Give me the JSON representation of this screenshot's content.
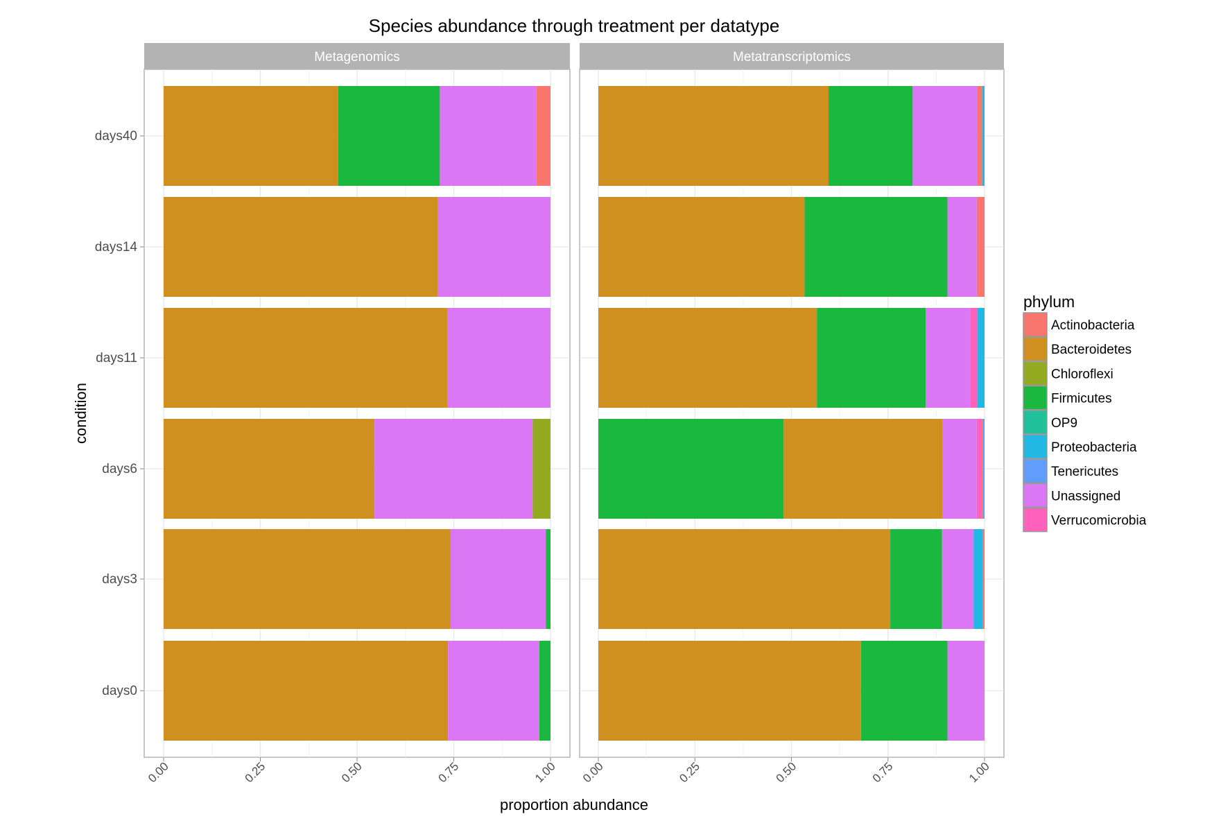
{
  "chart_data": {
    "type": "bar",
    "orientation": "horizontal-stacked",
    "title": "Species abundance through treatment per datatype",
    "xlabel": "proportion abundance",
    "ylabel": "condition",
    "xlim": [
      0,
      1
    ],
    "xticks": [
      "0.00",
      "0.25",
      "0.50",
      "0.75",
      "1.00"
    ],
    "categories": [
      "days40",
      "days14",
      "days11",
      "days6",
      "days3",
      "days0"
    ],
    "grid": true,
    "legend": {
      "title": "phylum",
      "placement": "right",
      "entries": [
        {
          "name": "Actinobacteria",
          "color": "#F8766D"
        },
        {
          "name": "Bacteroidetes",
          "color": "#D09020"
        },
        {
          "name": "Chloroflexi",
          "color": "#93AA21"
        },
        {
          "name": "Firmicutes",
          "color": "#1BB840"
        },
        {
          "name": "OP9",
          "color": "#20C19A"
        },
        {
          "name": "Proteobacteria",
          "color": "#21B9E3"
        },
        {
          "name": "Tenericutes",
          "color": "#619CFF"
        },
        {
          "name": "Unassigned",
          "color": "#DB77F5"
        },
        {
          "name": "Verrucomicrobia",
          "color": "#FF62BC"
        }
      ]
    },
    "panels": [
      {
        "name": "Metagenomics",
        "rows": [
          {
            "category": "days40",
            "segments": [
              [
                "Bacteroidetes",
                0.451
              ],
              [
                "Firmicutes",
                0.263
              ],
              [
                "Unassigned",
                0.25
              ],
              [
                "Actinobacteria",
                0.036
              ]
            ]
          },
          {
            "category": "days14",
            "segments": [
              [
                "Bacteroidetes",
                0.709
              ],
              [
                "Unassigned",
                0.291
              ]
            ]
          },
          {
            "category": "days11",
            "segments": [
              [
                "Bacteroidetes",
                0.733
              ],
              [
                "Unassigned",
                0.267
              ]
            ]
          },
          {
            "category": "days6",
            "segments": [
              [
                "Bacteroidetes",
                0.545
              ],
              [
                "Unassigned",
                0.409
              ],
              [
                "Chloroflexi",
                0.046
              ]
            ]
          },
          {
            "category": "days3",
            "segments": [
              [
                "Bacteroidetes",
                0.741
              ],
              [
                "Unassigned",
                0.247
              ],
              [
                "Firmicutes",
                0.012
              ]
            ]
          },
          {
            "category": "days0",
            "segments": [
              [
                "Bacteroidetes",
                0.735
              ],
              [
                "Unassigned",
                0.236
              ],
              [
                "Firmicutes",
                0.029
              ]
            ]
          }
        ]
      },
      {
        "name": "Metatranscriptomics",
        "rows": [
          {
            "category": "days40",
            "segments": [
              [
                "Bacteroidetes",
                0.596
              ],
              [
                "Firmicutes",
                0.218
              ],
              [
                "Unassigned",
                0.168
              ],
              [
                "Actinobacteria",
                0.012
              ],
              [
                "Proteobacteria",
                0.006
              ]
            ]
          },
          {
            "category": "days14",
            "segments": [
              [
                "Bacteroidetes",
                0.534
              ],
              [
                "Firmicutes",
                0.37
              ],
              [
                "Unassigned",
                0.076
              ],
              [
                "Actinobacteria",
                0.02
              ]
            ]
          },
          {
            "category": "days11",
            "segments": [
              [
                "Bacteroidetes",
                0.566
              ],
              [
                "Firmicutes",
                0.282
              ],
              [
                "Unassigned",
                0.116
              ],
              [
                "Verrucomicrobia",
                0.018
              ],
              [
                "Proteobacteria",
                0.018
              ]
            ]
          },
          {
            "category": "days6",
            "segments": [
              [
                "Firmicutes",
                0.48
              ],
              [
                "Bacteroidetes",
                0.412
              ],
              [
                "Unassigned",
                0.088
              ],
              [
                "Verrucomicrobia",
                0.012
              ],
              [
                "Actinobacteria",
                0.003
              ],
              [
                "Tenericutes",
                0.005
              ]
            ]
          },
          {
            "category": "days3",
            "segments": [
              [
                "Bacteroidetes",
                0.756
              ],
              [
                "Firmicutes",
                0.134
              ],
              [
                "Unassigned",
                0.082
              ],
              [
                "Proteobacteria",
                0.024
              ],
              [
                "Actinobacteria",
                0.004
              ]
            ]
          },
          {
            "category": "days0",
            "segments": [
              [
                "Bacteroidetes",
                0.68
              ],
              [
                "Firmicutes",
                0.224
              ],
              [
                "Unassigned",
                0.094
              ],
              [
                "Actinobacteria",
                0.002
              ]
            ]
          }
        ]
      }
    ]
  }
}
